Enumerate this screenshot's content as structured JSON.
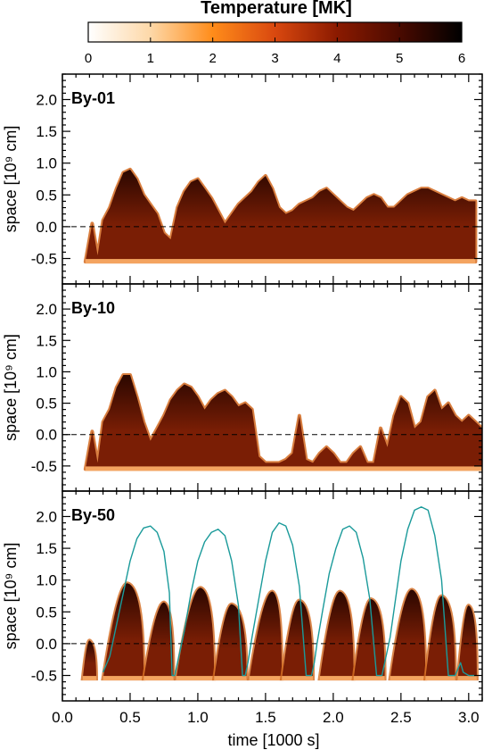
{
  "colorbar": {
    "title": "Temperature [MK]",
    "ticks": [
      "0",
      "1",
      "2",
      "3",
      "4",
      "5",
      "6"
    ],
    "range": [
      0,
      6
    ],
    "colormap": [
      "#ffffff",
      "#fdd8a8",
      "#ff8c1a",
      "#d9480f",
      "#8b1a00",
      "#4a0a00",
      "#000000"
    ]
  },
  "colors": {
    "hot": "#7a1e05",
    "hot_dark": "#2b0700",
    "edge": "#d2691e",
    "base_glow": "#f4a460",
    "loop_line": "#1a9a9a",
    "dash": "#000000"
  },
  "chart_data": [
    {
      "type": "heatmap",
      "title": "By-01",
      "xlabel": "time [1000 s]",
      "ylabel": "space [10⁹ cm]",
      "xlim": [
        0.0,
        3.1
      ],
      "ylim": [
        -0.9,
        2.4
      ],
      "yticks": [
        "-0.5",
        "0.0",
        "0.5",
        "1.0",
        "1.5",
        "2.0"
      ],
      "reference_line_y": 0.0,
      "hot_region_top": {
        "x": [
          0.17,
          0.22,
          0.26,
          0.3,
          0.35,
          0.4,
          0.45,
          0.5,
          0.55,
          0.6,
          0.65,
          0.7,
          0.75,
          0.8,
          0.85,
          0.9,
          0.95,
          1.0,
          1.05,
          1.1,
          1.15,
          1.2,
          1.25,
          1.3,
          1.35,
          1.4,
          1.45,
          1.5,
          1.55,
          1.6,
          1.65,
          1.7,
          1.75,
          1.8,
          1.85,
          1.9,
          1.95,
          2.0,
          2.05,
          2.1,
          2.15,
          2.2,
          2.25,
          2.3,
          2.35,
          2.4,
          2.45,
          2.5,
          2.55,
          2.6,
          2.65,
          2.7,
          2.75,
          2.8,
          2.85,
          2.9,
          2.95,
          3.0,
          3.05
        ],
        "y": [
          -0.55,
          0.05,
          -0.45,
          0.1,
          0.3,
          0.6,
          0.85,
          0.9,
          0.75,
          0.5,
          0.35,
          0.2,
          -0.1,
          -0.2,
          0.3,
          0.55,
          0.7,
          0.75,
          0.6,
          0.45,
          0.25,
          0.05,
          0.2,
          0.35,
          0.45,
          0.55,
          0.7,
          0.8,
          0.6,
          0.3,
          0.2,
          0.25,
          0.35,
          0.4,
          0.45,
          0.55,
          0.6,
          0.5,
          0.4,
          0.3,
          0.25,
          0.35,
          0.45,
          0.5,
          0.45,
          0.3,
          0.3,
          0.4,
          0.5,
          0.55,
          0.6,
          0.6,
          0.55,
          0.5,
          0.45,
          0.4,
          0.45,
          0.4,
          0.4
        ]
      }
    },
    {
      "type": "heatmap",
      "title": "By-10",
      "xlabel": "time [1000 s]",
      "ylabel": "space [10⁹ cm]",
      "xlim": [
        0.0,
        3.1
      ],
      "ylim": [
        -0.9,
        2.4
      ],
      "yticks": [
        "-0.5",
        "0.0",
        "0.5",
        "1.0",
        "1.5",
        "2.0"
      ],
      "reference_line_y": 0.0,
      "hot_region_top": {
        "x": [
          0.17,
          0.22,
          0.26,
          0.3,
          0.35,
          0.4,
          0.45,
          0.5,
          0.55,
          0.6,
          0.65,
          0.7,
          0.75,
          0.8,
          0.85,
          0.9,
          0.95,
          1.0,
          1.05,
          1.1,
          1.15,
          1.2,
          1.25,
          1.3,
          1.35,
          1.4,
          1.45,
          1.5,
          1.55,
          1.6,
          1.65,
          1.7,
          1.75,
          1.8,
          1.85,
          1.9,
          1.95,
          2.0,
          2.05,
          2.1,
          2.15,
          2.2,
          2.25,
          2.3,
          2.35,
          2.4,
          2.45,
          2.5,
          2.55,
          2.6,
          2.65,
          2.7,
          2.75,
          2.8,
          2.85,
          2.9,
          2.95,
          3.0,
          3.05,
          3.1
        ],
        "y": [
          -0.55,
          0.05,
          -0.45,
          0.2,
          0.4,
          0.75,
          0.95,
          0.95,
          0.6,
          0.2,
          -0.1,
          0.1,
          0.3,
          0.55,
          0.7,
          0.8,
          0.75,
          0.6,
          0.4,
          0.55,
          0.65,
          0.7,
          0.6,
          0.45,
          0.5,
          0.4,
          -0.35,
          -0.45,
          -0.45,
          -0.45,
          -0.4,
          -0.3,
          0.3,
          -0.4,
          -0.45,
          -0.3,
          -0.2,
          -0.3,
          -0.45,
          -0.45,
          -0.3,
          -0.2,
          -0.45,
          -0.45,
          0.1,
          -0.2,
          0.3,
          0.6,
          0.5,
          0.1,
          0.2,
          0.6,
          0.7,
          0.4,
          0.5,
          0.3,
          0.2,
          0.3,
          0.2,
          0.1
        ]
      }
    },
    {
      "type": "heatmap",
      "title": "By-50",
      "xlabel": "time [1000 s]",
      "ylabel": "space [10⁹ cm]",
      "xlim": [
        0.0,
        3.1
      ],
      "ylim": [
        -0.9,
        2.4
      ],
      "xticks": [
        "0.0",
        "0.5",
        "1.0",
        "1.5",
        "2.0",
        "2.5",
        "3.0"
      ],
      "yticks": [
        "-0.5",
        "0.0",
        "0.5",
        "1.0",
        "1.5",
        "2.0"
      ],
      "reference_line_y": 0.0,
      "hot_bursts": [
        {
          "start": 0.15,
          "peak_t": 0.2,
          "end": 0.25,
          "peak_y": 0.05
        },
        {
          "start": 0.3,
          "peak_t": 0.48,
          "end": 0.6,
          "peak_y": 0.95
        },
        {
          "start": 0.6,
          "peak_t": 0.75,
          "end": 0.82,
          "peak_y": 0.65
        },
        {
          "start": 0.84,
          "peak_t": 1.02,
          "end": 1.12,
          "peak_y": 0.88
        },
        {
          "start": 1.12,
          "peak_t": 1.25,
          "end": 1.36,
          "peak_y": 0.62
        },
        {
          "start": 1.38,
          "peak_t": 1.55,
          "end": 1.62,
          "peak_y": 0.82
        },
        {
          "start": 1.62,
          "peak_t": 1.75,
          "end": 1.85,
          "peak_y": 0.68
        },
        {
          "start": 1.9,
          "peak_t": 2.05,
          "end": 2.15,
          "peak_y": 0.82
        },
        {
          "start": 2.15,
          "peak_t": 2.28,
          "end": 2.38,
          "peak_y": 0.7
        },
        {
          "start": 2.42,
          "peak_t": 2.58,
          "end": 2.68,
          "peak_y": 0.85
        },
        {
          "start": 2.68,
          "peak_t": 2.8,
          "end": 2.9,
          "peak_y": 0.75
        },
        {
          "start": 2.92,
          "peak_t": 3.0,
          "end": 3.06,
          "peak_y": 0.6
        }
      ],
      "series": [
        {
          "type": "line",
          "x": [
            0.3,
            0.35,
            0.4,
            0.45,
            0.5,
            0.55,
            0.6,
            0.65,
            0.7,
            0.75,
            0.79,
            0.81,
            0.83,
            0.85,
            0.9,
            0.95,
            1.0,
            1.05,
            1.1,
            1.15,
            1.2,
            1.25,
            1.3,
            1.33,
            1.35,
            1.37,
            1.4,
            1.45,
            1.5,
            1.55,
            1.6,
            1.65,
            1.7,
            1.75,
            1.8,
            1.84,
            1.86,
            1.88,
            1.92,
            1.97,
            2.02,
            2.07,
            2.12,
            2.17,
            2.22,
            2.27,
            2.32,
            2.36,
            2.38,
            2.42,
            2.46,
            2.5,
            2.55,
            2.6,
            2.65,
            2.7,
            2.75,
            2.8,
            2.85,
            2.9,
            2.94,
            2.96,
            3.0,
            3.05
          ],
          "y": [
            -0.45,
            -0.2,
            0.3,
            0.8,
            1.3,
            1.65,
            1.82,
            1.85,
            1.75,
            1.45,
            0.8,
            -0.5,
            -0.5,
            -0.3,
            0.2,
            0.8,
            1.3,
            1.6,
            1.75,
            1.8,
            1.7,
            1.3,
            0.6,
            -0.5,
            -0.5,
            -0.3,
            0.1,
            0.7,
            1.3,
            1.75,
            1.9,
            1.85,
            1.55,
            0.9,
            -0.5,
            -0.5,
            -0.3,
            0.0,
            0.5,
            1.1,
            1.5,
            1.8,
            1.85,
            1.75,
            1.35,
            0.7,
            -0.5,
            -0.5,
            -0.3,
            0.1,
            0.7,
            1.3,
            1.8,
            2.1,
            2.15,
            2.1,
            1.7,
            1.0,
            -0.5,
            -0.5,
            -0.3,
            -0.45,
            -0.5,
            -0.5
          ]
        }
      ]
    }
  ]
}
